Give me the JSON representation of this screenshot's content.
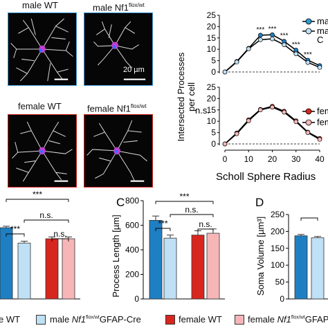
{
  "colors": {
    "male_wt": "#1f7fc3",
    "male_nf1": "#bfe0f5",
    "female_wt": "#d7261e",
    "female_nf1": "#f6b6b8",
    "male_frame": "#3a9ad9",
    "female_frame": "#d7261e"
  },
  "panels": {
    "male_wt": {
      "label": "male WT",
      "sup": ""
    },
    "male_nf1": {
      "label": "male Nf1",
      "sup": "flox/wt"
    },
    "female_wt": {
      "label": "female WT",
      "sup": ""
    },
    "female_nf1": {
      "label": "female Nf1",
      "sup": "flox/wt"
    },
    "scale_label": "20 µm"
  },
  "sholl": {
    "y_label_line1": "Intersected Processes",
    "y_label_line2": "per cell",
    "x_label": "Scholl Sphere Radius",
    "ns_label": "n.s.",
    "sig_label": "***",
    "legend_top": [
      "ma",
      "ma",
      "C"
    ],
    "legend_bottom": [
      "fema",
      "fema"
    ]
  },
  "bars": {
    "panel_c": "C",
    "panel_d": "D",
    "sig": "***",
    "ns": "n.s."
  },
  "legend": {
    "male_wt": "e WT",
    "male_nf1_prefix": "male ",
    "male_nf1_gene": "Nf1",
    "male_nf1_sup": "flox/wt",
    "male_nf1_suffix": "GFAP-Cre",
    "female_wt": "female WT",
    "female_nf1_prefix": "female ",
    "female_nf1_gene": "Nf1",
    "female_nf1_sup": "flox/wt",
    "female_nf1_suffix": "GFAP-"
  },
  "chart_data": [
    {
      "type": "line",
      "title": "",
      "xlabel": "Scholl Sphere Radius",
      "ylabel": "Intersected Processes per cell",
      "xlim": [
        0,
        40
      ],
      "ylim": [
        0,
        25
      ],
      "x_ticks": [
        0,
        10,
        20,
        30,
        40
      ],
      "y_ticks": [
        0,
        5,
        10,
        15,
        20,
        25
      ],
      "x": [
        0,
        5,
        10,
        15,
        20,
        25,
        30,
        35,
        40
      ],
      "series": [
        {
          "values": [
            0,
            4.6,
            10.4,
            16.2,
            16.4,
            13.5,
            9.6,
            5.2,
            2.8
          ]
        },
        {
          "values": [
            0,
            4.4,
            10.2,
            14.2,
            14.6,
            12.0,
            8.0,
            4.2,
            2.0
          ]
        }
      ],
      "significance": [
        "***",
        "***",
        "***",
        "***",
        "***"
      ],
      "grid": false
    },
    {
      "type": "line",
      "title": "",
      "xlabel": "Scholl Sphere Radius",
      "ylabel": "Intersected Processes per cell",
      "xlim": [
        0,
        40
      ],
      "ylim": [
        0,
        25
      ],
      "x_ticks": [
        0,
        10,
        20,
        30,
        40
      ],
      "y_ticks": [
        0,
        5,
        10,
        15,
        20,
        25
      ],
      "x": [
        0,
        5,
        10,
        15,
        20,
        25,
        30,
        35,
        40
      ],
      "series": [
        {
          "values": [
            0,
            4.8,
            10.6,
            15.2,
            16.6,
            14.4,
            10.2,
            5.2,
            2.4
          ]
        },
        {
          "values": [
            0,
            4.5,
            10.2,
            15.0,
            16.2,
            14.0,
            9.8,
            5.0,
            2.0
          ]
        }
      ],
      "annotation": "n.s.",
      "grid": false
    },
    {
      "type": "bar",
      "title": "",
      "categories": [
        "male WT",
        "male Nf1 flox/wt GFAP-Cre",
        "female WT",
        "female Nf1 flox/wt GFAP-Cre"
      ],
      "values": [
        580,
        455,
        490,
        490
      ],
      "errors": [
        12,
        15,
        15,
        15
      ],
      "grid": false
    },
    {
      "type": "bar",
      "title": "",
      "ylabel": "Process Length [µm]",
      "ylim": [
        0,
        800
      ],
      "y_ticks": [
        0,
        200,
        400,
        600,
        800
      ],
      "categories": [
        "male WT",
        "male Nf1 flox/wt GFAP-Cre",
        "female WT",
        "female Nf1 flox/wt GFAP-Cre"
      ],
      "values": [
        640,
        495,
        520,
        535
      ],
      "errors": [
        35,
        25,
        35,
        35
      ],
      "grid": false
    },
    {
      "type": "bar",
      "title": "",
      "ylabel": "Soma Volume [µm³]",
      "ylim": [
        0,
        250
      ],
      "y_ticks": [
        0,
        50,
        100,
        150,
        200,
        250
      ],
      "categories": [
        "male WT",
        "male Nf1 flox/wt GFAP-Cre",
        "female WT",
        "female Nf1 flox/wt GFAP-Cre"
      ],
      "values": [
        187,
        181,
        0,
        0
      ],
      "errors": [
        4,
        4,
        0,
        0
      ],
      "grid": false
    }
  ]
}
